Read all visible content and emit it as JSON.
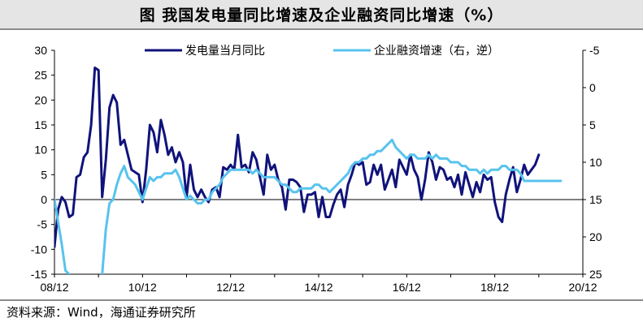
{
  "figure": {
    "title": "图   我国发电量同比增速及企业融资同比增速（%）",
    "source": "资料来源：Wind，海通证券研究所"
  },
  "colors": {
    "series_primary": "#10137a",
    "series_secondary": "#58c3ee",
    "axis": "#000000"
  },
  "chart_data": {
    "type": "line",
    "x_tick_labels": [
      "08/12",
      "10/12",
      "12/12",
      "14/12",
      "16/12",
      "18/12",
      "20/12"
    ],
    "x_range": [
      "2008-12",
      "2020-12"
    ],
    "left_axis": {
      "ylim": [
        -15,
        30
      ],
      "ticks": [
        30,
        25,
        20,
        15,
        10,
        5,
        0,
        -5,
        -10,
        -15
      ]
    },
    "right_axis": {
      "ylim": [
        -5,
        25
      ],
      "reversed": true,
      "ticks": [
        -5,
        0,
        5,
        10,
        15,
        20,
        25
      ]
    },
    "legend_position": "top",
    "series": [
      {
        "name": "发电量当月同比",
        "axis": "left",
        "points": [
          [
            "2008-12",
            -9.5
          ],
          [
            "2009-01",
            -2
          ],
          [
            "2009-02",
            0.5
          ],
          [
            "2009-03",
            -0.5
          ],
          [
            "2009-04",
            -3.5
          ],
          [
            "2009-05",
            -3
          ],
          [
            "2009-06",
            4.5
          ],
          [
            "2009-07",
            5
          ],
          [
            "2009-08",
            8.5
          ],
          [
            "2009-09",
            9.5
          ],
          [
            "2009-10",
            15
          ],
          [
            "2009-11",
            26.5
          ],
          [
            "2009-12",
            26
          ],
          [
            "2010-01",
            0.5
          ],
          [
            "2010-02",
            8
          ],
          [
            "2010-03",
            18.5
          ],
          [
            "2010-04",
            21
          ],
          [
            "2010-05",
            19.5
          ],
          [
            "2010-06",
            11
          ],
          [
            "2010-07",
            12
          ],
          [
            "2010-08",
            9
          ],
          [
            "2010-09",
            6
          ],
          [
            "2010-10",
            5.5
          ],
          [
            "2010-11",
            5
          ],
          [
            "2010-12",
            -0.5
          ],
          [
            "2011-01",
            6
          ],
          [
            "2011-02",
            15
          ],
          [
            "2011-03",
            13.5
          ],
          [
            "2011-04",
            9.5
          ],
          [
            "2011-05",
            16
          ],
          [
            "2011-06",
            13
          ],
          [
            "2011-07",
            9
          ],
          [
            "2011-08",
            10.5
          ],
          [
            "2011-09",
            7.5
          ],
          [
            "2011-10",
            9.5
          ],
          [
            "2011-11",
            7.5
          ],
          [
            "2011-12",
            0.5
          ],
          [
            "2012-01",
            7
          ],
          [
            "2012-02",
            2
          ],
          [
            "2012-03",
            0.5
          ],
          [
            "2012-04",
            2
          ],
          [
            "2012-05",
            0.5
          ],
          [
            "2012-06",
            -0.5
          ],
          [
            "2012-07",
            2
          ],
          [
            "2012-08",
            2.5
          ],
          [
            "2012-09",
            0.5
          ],
          [
            "2012-10",
            6.5
          ],
          [
            "2012-11",
            6
          ],
          [
            "2012-12",
            7
          ],
          [
            "2013-01",
            6
          ],
          [
            "2013-02",
            13
          ],
          [
            "2013-03",
            6.5
          ],
          [
            "2013-04",
            7
          ],
          [
            "2013-05",
            5.5
          ],
          [
            "2013-06",
            9.5
          ],
          [
            "2013-07",
            8
          ],
          [
            "2013-08",
            4.5
          ],
          [
            "2013-09",
            1
          ],
          [
            "2013-10",
            9
          ],
          [
            "2013-11",
            6
          ],
          [
            "2013-12",
            7
          ],
          [
            "2014-01",
            4
          ],
          [
            "2014-02",
            2.5
          ],
          [
            "2014-03",
            -2
          ],
          [
            "2014-04",
            4
          ],
          [
            "2014-05",
            4
          ],
          [
            "2014-06",
            3.5
          ],
          [
            "2014-07",
            2.5
          ],
          [
            "2014-08",
            -2.5
          ],
          [
            "2014-09",
            1
          ],
          [
            "2014-10",
            1
          ],
          [
            "2014-11",
            1.5
          ],
          [
            "2014-12",
            -3.5
          ],
          [
            "2015-01",
            0.5
          ],
          [
            "2015-02",
            -3.5
          ],
          [
            "2015-03",
            -3.5
          ],
          [
            "2015-04",
            -1
          ],
          [
            "2015-05",
            1
          ],
          [
            "2015-06",
            2
          ],
          [
            "2015-07",
            -1.5
          ],
          [
            "2015-08",
            3
          ],
          [
            "2015-09",
            5
          ],
          [
            "2015-10",
            7.5
          ],
          [
            "2015-11",
            7
          ],
          [
            "2015-12",
            7.5
          ],
          [
            "2016-01",
            3
          ],
          [
            "2016-02",
            3.5
          ],
          [
            "2016-03",
            7
          ],
          [
            "2016-04",
            5
          ],
          [
            "2016-05",
            7
          ],
          [
            "2016-06",
            2
          ],
          [
            "2016-07",
            4
          ],
          [
            "2016-08",
            6
          ],
          [
            "2016-09",
            2.5
          ],
          [
            "2016-10",
            8
          ],
          [
            "2016-11",
            6.5
          ],
          [
            "2016-12",
            5
          ],
          [
            "2017-01",
            9
          ],
          [
            "2017-02",
            6
          ],
          [
            "2017-03",
            4.5
          ],
          [
            "2017-04",
            0
          ],
          [
            "2017-05",
            4
          ],
          [
            "2017-06",
            9.5
          ],
          [
            "2017-07",
            7.5
          ],
          [
            "2017-08",
            4
          ],
          [
            "2017-09",
            6.5
          ],
          [
            "2017-10",
            6
          ],
          [
            "2017-11",
            4
          ],
          [
            "2017-12",
            4.5
          ],
          [
            "2018-01",
            2.5
          ],
          [
            "2018-02",
            5
          ],
          [
            "2018-03",
            1
          ],
          [
            "2018-04",
            5.5
          ],
          [
            "2018-05",
            3
          ],
          [
            "2018-06",
            0.5
          ],
          [
            "2018-07",
            3.5
          ],
          [
            "2018-08",
            1.5
          ],
          [
            "2018-09",
            5
          ],
          [
            "2018-10",
            4
          ],
          [
            "2018-11",
            4.5
          ],
          [
            "2018-12",
            -0.5
          ],
          [
            "2019-01",
            -3.5
          ],
          [
            "2019-02",
            -4.5
          ],
          [
            "2019-03",
            1
          ],
          [
            "2019-04",
            4
          ],
          [
            "2019-05",
            6.5
          ],
          [
            "2019-06",
            1.5
          ],
          [
            "2019-07",
            4
          ],
          [
            "2019-08",
            7
          ],
          [
            "2019-09",
            5
          ],
          [
            "2019-10",
            6
          ],
          [
            "2019-11",
            7
          ],
          [
            "2019-12",
            9
          ]
        ]
      },
      {
        "name": "企业融资增速（右，逆）",
        "axis": "right",
        "points": [
          [
            "2008-12",
            15
          ],
          [
            "2009-01",
            18
          ],
          [
            "2009-02",
            21
          ],
          [
            "2009-03",
            24.5
          ],
          [
            "2009-04",
            25
          ],
          [
            "2010-01",
            25
          ],
          [
            "2010-02",
            19
          ],
          [
            "2010-03",
            15.5
          ],
          [
            "2010-04",
            15
          ],
          [
            "2010-05",
            13
          ],
          [
            "2010-06",
            11.5
          ],
          [
            "2010-07",
            10.5
          ],
          [
            "2010-08",
            12
          ],
          [
            "2010-09",
            12.5
          ],
          [
            "2010-10",
            13
          ],
          [
            "2010-11",
            14
          ],
          [
            "2010-12",
            15
          ],
          [
            "2011-01",
            13.5
          ],
          [
            "2011-02",
            12
          ],
          [
            "2011-03",
            12.5
          ],
          [
            "2011-04",
            12
          ],
          [
            "2011-05",
            12
          ],
          [
            "2011-06",
            11.5
          ],
          [
            "2011-07",
            11.5
          ],
          [
            "2011-08",
            11.5
          ],
          [
            "2011-09",
            11
          ],
          [
            "2011-10",
            12
          ],
          [
            "2011-11",
            13.5
          ],
          [
            "2011-12",
            15
          ],
          [
            "2012-01",
            14.5
          ],
          [
            "2012-02",
            15
          ],
          [
            "2012-03",
            15.5
          ],
          [
            "2012-04",
            15.5
          ],
          [
            "2012-05",
            15
          ],
          [
            "2012-06",
            15
          ],
          [
            "2012-07",
            14
          ],
          [
            "2012-08",
            13.5
          ],
          [
            "2012-09",
            13
          ],
          [
            "2012-10",
            12
          ],
          [
            "2012-11",
            11.5
          ],
          [
            "2012-12",
            11
          ],
          [
            "2013-01",
            11
          ],
          [
            "2013-02",
            11
          ],
          [
            "2013-03",
            11
          ],
          [
            "2013-04",
            11
          ],
          [
            "2013-05",
            11
          ],
          [
            "2013-06",
            11.5
          ],
          [
            "2013-07",
            11
          ],
          [
            "2013-08",
            11.5
          ],
          [
            "2013-09",
            12
          ],
          [
            "2013-10",
            12
          ],
          [
            "2013-11",
            12
          ],
          [
            "2013-12",
            12
          ],
          [
            "2014-01",
            12.5
          ],
          [
            "2014-02",
            13
          ],
          [
            "2014-03",
            13
          ],
          [
            "2014-04",
            13.5
          ],
          [
            "2014-05",
            14
          ],
          [
            "2014-06",
            14
          ],
          [
            "2014-07",
            13.5
          ],
          [
            "2014-08",
            13.5
          ],
          [
            "2014-09",
            13.5
          ],
          [
            "2014-10",
            13.5
          ],
          [
            "2014-11",
            13
          ],
          [
            "2014-12",
            13
          ],
          [
            "2015-01",
            13.5
          ],
          [
            "2015-02",
            13.5
          ],
          [
            "2015-03",
            14
          ],
          [
            "2015-04",
            13.5
          ],
          [
            "2015-05",
            13
          ],
          [
            "2015-06",
            12.5
          ],
          [
            "2015-07",
            12
          ],
          [
            "2015-08",
            11.5
          ],
          [
            "2015-09",
            10.5
          ],
          [
            "2015-10",
            10
          ],
          [
            "2015-11",
            10
          ],
          [
            "2015-12",
            9.5
          ],
          [
            "2016-01",
            9.5
          ],
          [
            "2016-02",
            9
          ],
          [
            "2016-03",
            9
          ],
          [
            "2016-04",
            8.5
          ],
          [
            "2016-05",
            8.5
          ],
          [
            "2016-06",
            8
          ],
          [
            "2016-07",
            7.5
          ],
          [
            "2016-08",
            7
          ],
          [
            "2016-09",
            8
          ],
          [
            "2016-10",
            8.5
          ],
          [
            "2016-11",
            9
          ],
          [
            "2016-12",
            9.5
          ],
          [
            "2017-01",
            9
          ],
          [
            "2017-02",
            9
          ],
          [
            "2017-03",
            9.5
          ],
          [
            "2017-04",
            9.5
          ],
          [
            "2017-05",
            9.5
          ],
          [
            "2017-06",
            9
          ],
          [
            "2017-07",
            9.5
          ],
          [
            "2017-08",
            9
          ],
          [
            "2017-09",
            9.5
          ],
          [
            "2017-10",
            9.5
          ],
          [
            "2017-11",
            9.5
          ],
          [
            "2017-12",
            10
          ],
          [
            "2018-01",
            10
          ],
          [
            "2018-02",
            10
          ],
          [
            "2018-03",
            10.5
          ],
          [
            "2018-04",
            10.5
          ],
          [
            "2018-05",
            11
          ],
          [
            "2018-06",
            11
          ],
          [
            "2018-07",
            11
          ],
          [
            "2018-08",
            11.5
          ],
          [
            "2018-09",
            11
          ],
          [
            "2018-10",
            11.5
          ],
          [
            "2018-11",
            11
          ],
          [
            "2018-12",
            11
          ],
          [
            "2019-01",
            11
          ],
          [
            "2019-02",
            10.5
          ],
          [
            "2019-03",
            10.5
          ],
          [
            "2019-04",
            11
          ],
          [
            "2019-05",
            11
          ],
          [
            "2019-06",
            11
          ],
          [
            "2019-07",
            11.5
          ],
          [
            "2019-08",
            12.5
          ],
          [
            "2019-09",
            12.5
          ],
          [
            "2019-10",
            12.5
          ],
          [
            "2019-11",
            12.5
          ],
          [
            "2019-12",
            12.5
          ],
          [
            "2020-01",
            12.5
          ],
          [
            "2020-02",
            12.5
          ],
          [
            "2020-03",
            12.5
          ],
          [
            "2020-04",
            12.5
          ],
          [
            "2020-05",
            12.5
          ],
          [
            "2020-06",
            12.5
          ]
        ]
      }
    ]
  }
}
